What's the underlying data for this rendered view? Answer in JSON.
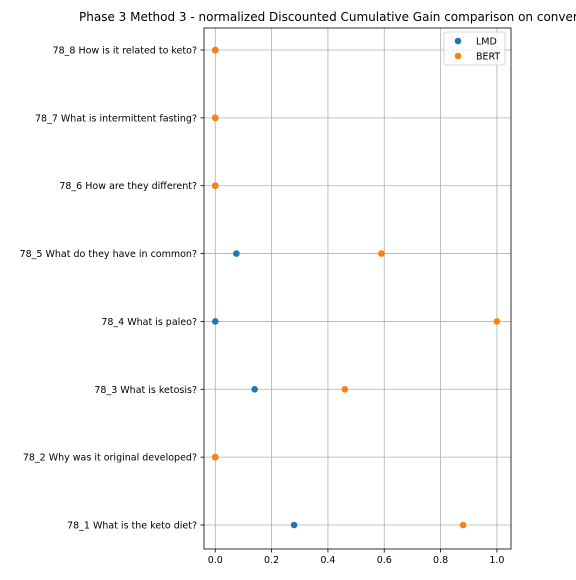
{
  "chart_data": {
    "type": "scatter",
    "title": "Phase 3 Method 3 - normalized Discounted Cumulative Gain comparison on conver",
    "xlabel": "",
    "ylabel": "",
    "xlim": [
      -0.04,
      1.05
    ],
    "x_ticks": [
      "0.0",
      "0.2",
      "0.4",
      "0.6",
      "0.8",
      "1.0"
    ],
    "x_tick_values": [
      0.0,
      0.2,
      0.4,
      0.6,
      0.8,
      1.0
    ],
    "categories": [
      "78_1 What is the keto diet?",
      "78_2 Why was it original developed?",
      "78_3 What is ketosis?",
      "78_4 What is paleo?",
      "78_5 What do they have in common?",
      "78_6 How are they different?",
      "78_7 What is intermittent fasting?",
      "78_8 How is it related to keto?"
    ],
    "grid": true,
    "legend_position": "top-right",
    "series": [
      {
        "name": "LMD",
        "color": "#1f77b4",
        "values": [
          0.28,
          0.0,
          0.14,
          0.0,
          0.075,
          0.0,
          0.0,
          0.0
        ]
      },
      {
        "name": "BERT",
        "color": "#ff7f0e",
        "values": [
          0.88,
          0.0,
          0.46,
          1.0,
          0.59,
          0.0,
          0.0,
          0.0
        ]
      }
    ]
  }
}
